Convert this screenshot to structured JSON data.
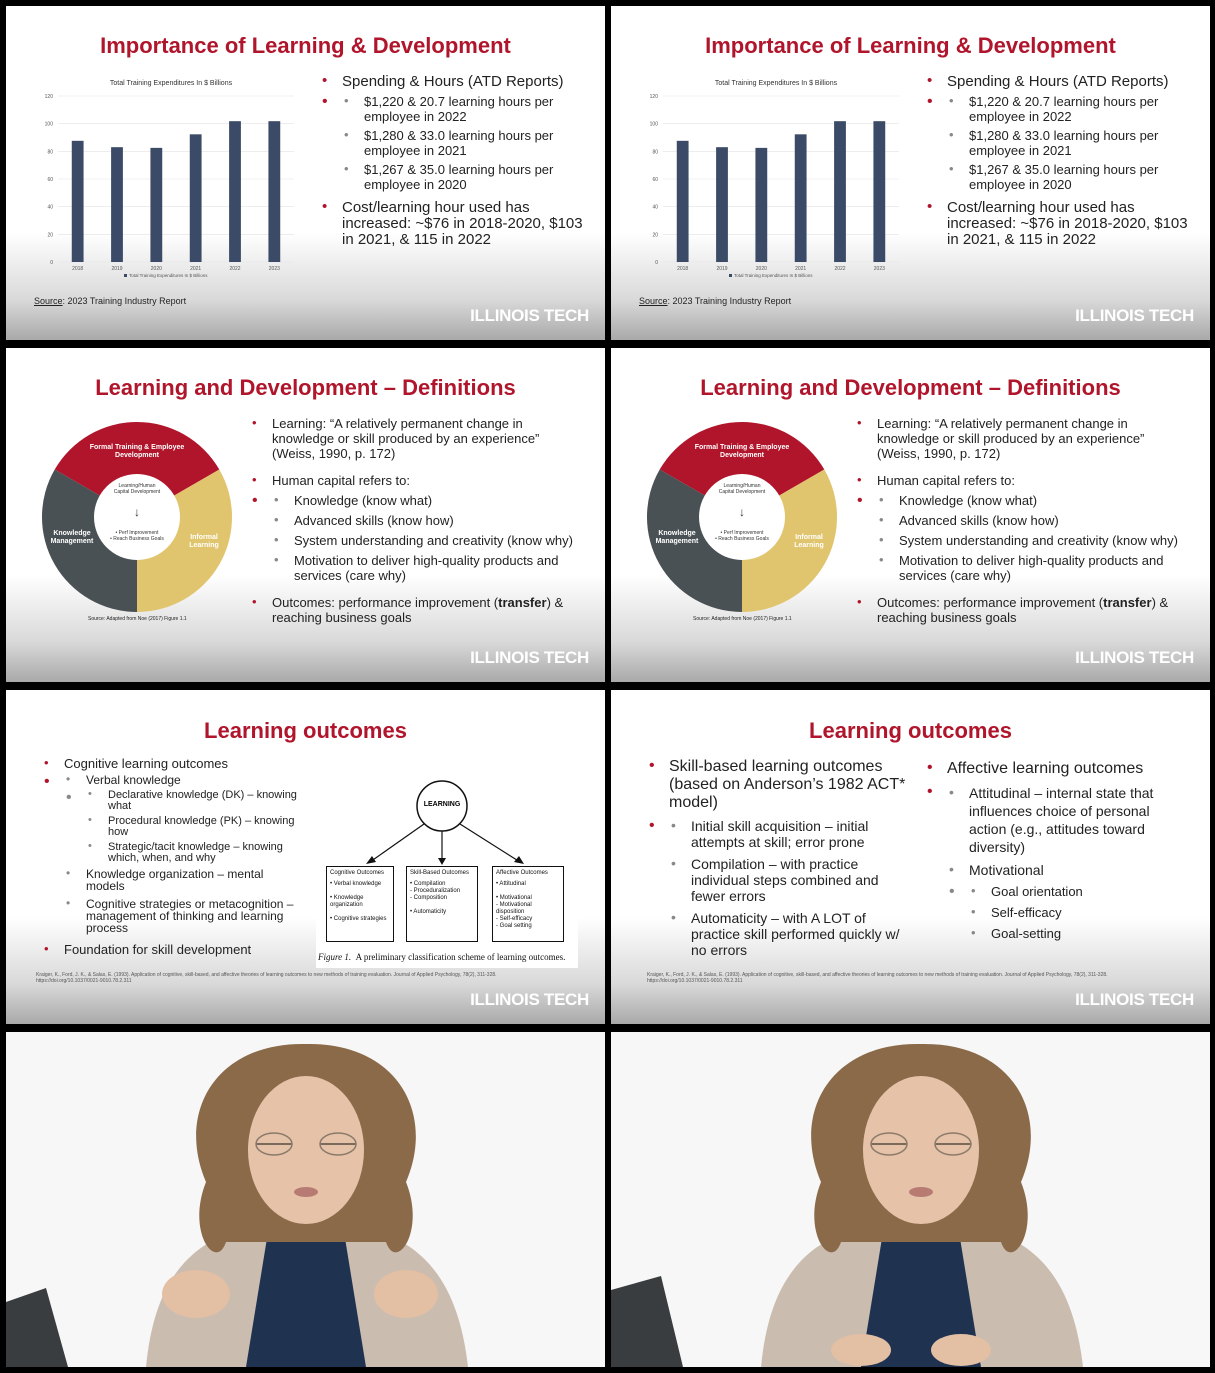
{
  "colors": {
    "accent": "#b0152b",
    "bar": "#3b4a66",
    "donut_red": "#b0152b",
    "donut_dark": "#4a5154",
    "donut_gold": "#e0c56e"
  },
  "slide1": {
    "title": "Importance of Learning & Development",
    "bullet1": "Spending & Hours (ATD Reports)",
    "sub1": "$1,220 & 20.7 learning hours per employee in 2022",
    "sub2": "$1,280 & 33.0 learning hours per employee in 2021",
    "sub3": "$1,267 & 35.0 learning hours per employee in 2020",
    "bullet2": "Cost/learning hour used has increased: ~$76 in 2018-2020, $103 in 2021, & 115 in 2022",
    "source_label": "Source",
    "source_text": ": 2023 Training Industry Report",
    "brand": "ILLINOIS TECH",
    "chart_data": {
      "type": "bar",
      "title": "Total Training Expenditures In $ Billions",
      "categories": [
        "2018",
        "2019",
        "2020",
        "2021",
        "2022",
        "2023"
      ],
      "series": [
        {
          "name": "Total Training Expenditures In $ Billions",
          "values": [
            87.6,
            83,
            82.5,
            92.3,
            101.8,
            101.8
          ]
        }
      ],
      "ylim": [
        0,
        120
      ],
      "yticks": [
        "0",
        "20",
        "40",
        "60",
        "80",
        "100",
        "120"
      ],
      "grid": true,
      "legend": "bottom"
    }
  },
  "slide2": {
    "title": "Learning and Development – Definitions",
    "b1": "Learning: “A relatively permanent change in knowledge or skill produced by an experience” (Weiss, 1990, p. 172)",
    "b2": "Human capital refers to:",
    "s1": "Knowledge (know what)",
    "s2": "Advanced skills (know how)",
    "s3": "System understanding and creativity (know why)",
    "s4": "Motivation to deliver high-quality products and services (care why)",
    "b3_pre": "Outcomes: performance improvement (",
    "b3_bold": "transfer",
    "b3_post": ") & reaching business goals",
    "donut_top": "Formal Training & Employee Development",
    "donut_left": "Knowledge Management",
    "donut_right": "Informal Learning",
    "center_top": "Learning/Human Capital Development",
    "center_arrow": "↓",
    "center_bottom1": "• Perf Improvement",
    "center_bottom2": "• Reach Business Goals",
    "source": "Source: Adapted from Noe (2017) Figure 1.1",
    "brand": "ILLINOIS TECH"
  },
  "slide3": {
    "title": "Learning outcomes",
    "b1": "Cognitive learning outcomes",
    "s1": "Verbal knowledge",
    "t1": "Declarative knowledge (DK) – knowing what",
    "t2": "Procedural knowledge (PK) – knowing how",
    "t3": "Strategic/tacit knowledge – knowing which, when, and why",
    "s2": "Knowledge organization – mental models",
    "s3": "Cognitive strategies or metacognition – management of thinking and learning process",
    "b2": "Foundation for skill development",
    "fig_root": "LEARNING",
    "box1_title": "Cognitive Outcomes",
    "box1_items": "• Verbal knowledge\n\n• Knowledge organization\n\n• Cognitive strategies",
    "box2_title": "Skill-Based Outcomes",
    "box2_items": "• Compilation\n  - Proceduralization\n  - Composition\n\n• Automaticity",
    "box3_title": "Affective Outcomes",
    "box3_items": "• Attitudinal\n\n• Motivational\n  - Motivational disposition\n  - Self-efficacy\n  - Goal setting",
    "fig_caption_italic": "Figure 1.",
    "fig_caption": "A preliminary classification scheme of learning outcomes.",
    "citation": "Kraiger, K., Ford, J. K., & Salas, E. (1993). Application of cognitive, skill-based, and affective theories of learning outcomes to new methods of training evaluation. Journal of Applied Psychology, 78(2), 311-328. https://doi.org/10.1037/0021-9010.78.2.311",
    "brand": "ILLINOIS TECH"
  },
  "slide4": {
    "title": "Learning outcomes",
    "l1": "Skill-based learning outcomes (based on Anderson’s 1982 ACT* model)",
    "l_s1": "Initial skill acquisition – initial attempts at skill; error prone",
    "l_s2": "Compilation – with practice individual steps combined and fewer errors",
    "l_s3": "Automaticity – with A LOT of practice skill performed quickly w/ no errors",
    "r1": "Affective learning outcomes",
    "r_s1": "Attitudinal – internal state that influences choice of personal action (e.g., attitudes toward diversity)",
    "r_s2": "Motivational",
    "r_t1": "Goal orientation",
    "r_t2": "Self-efficacy",
    "r_t3": "Goal-setting",
    "citation": "Kraiger, K., Ford, J. K., & Salas, E. (1993). Application of cognitive, skill-based, and affective theories of learning outcomes to new methods of training evaluation. Journal of Applied Psychology, 78(2), 311-328. https://doi.org/10.1037/0021-9010.78.2.311",
    "brand": "ILLINOIS TECH"
  }
}
